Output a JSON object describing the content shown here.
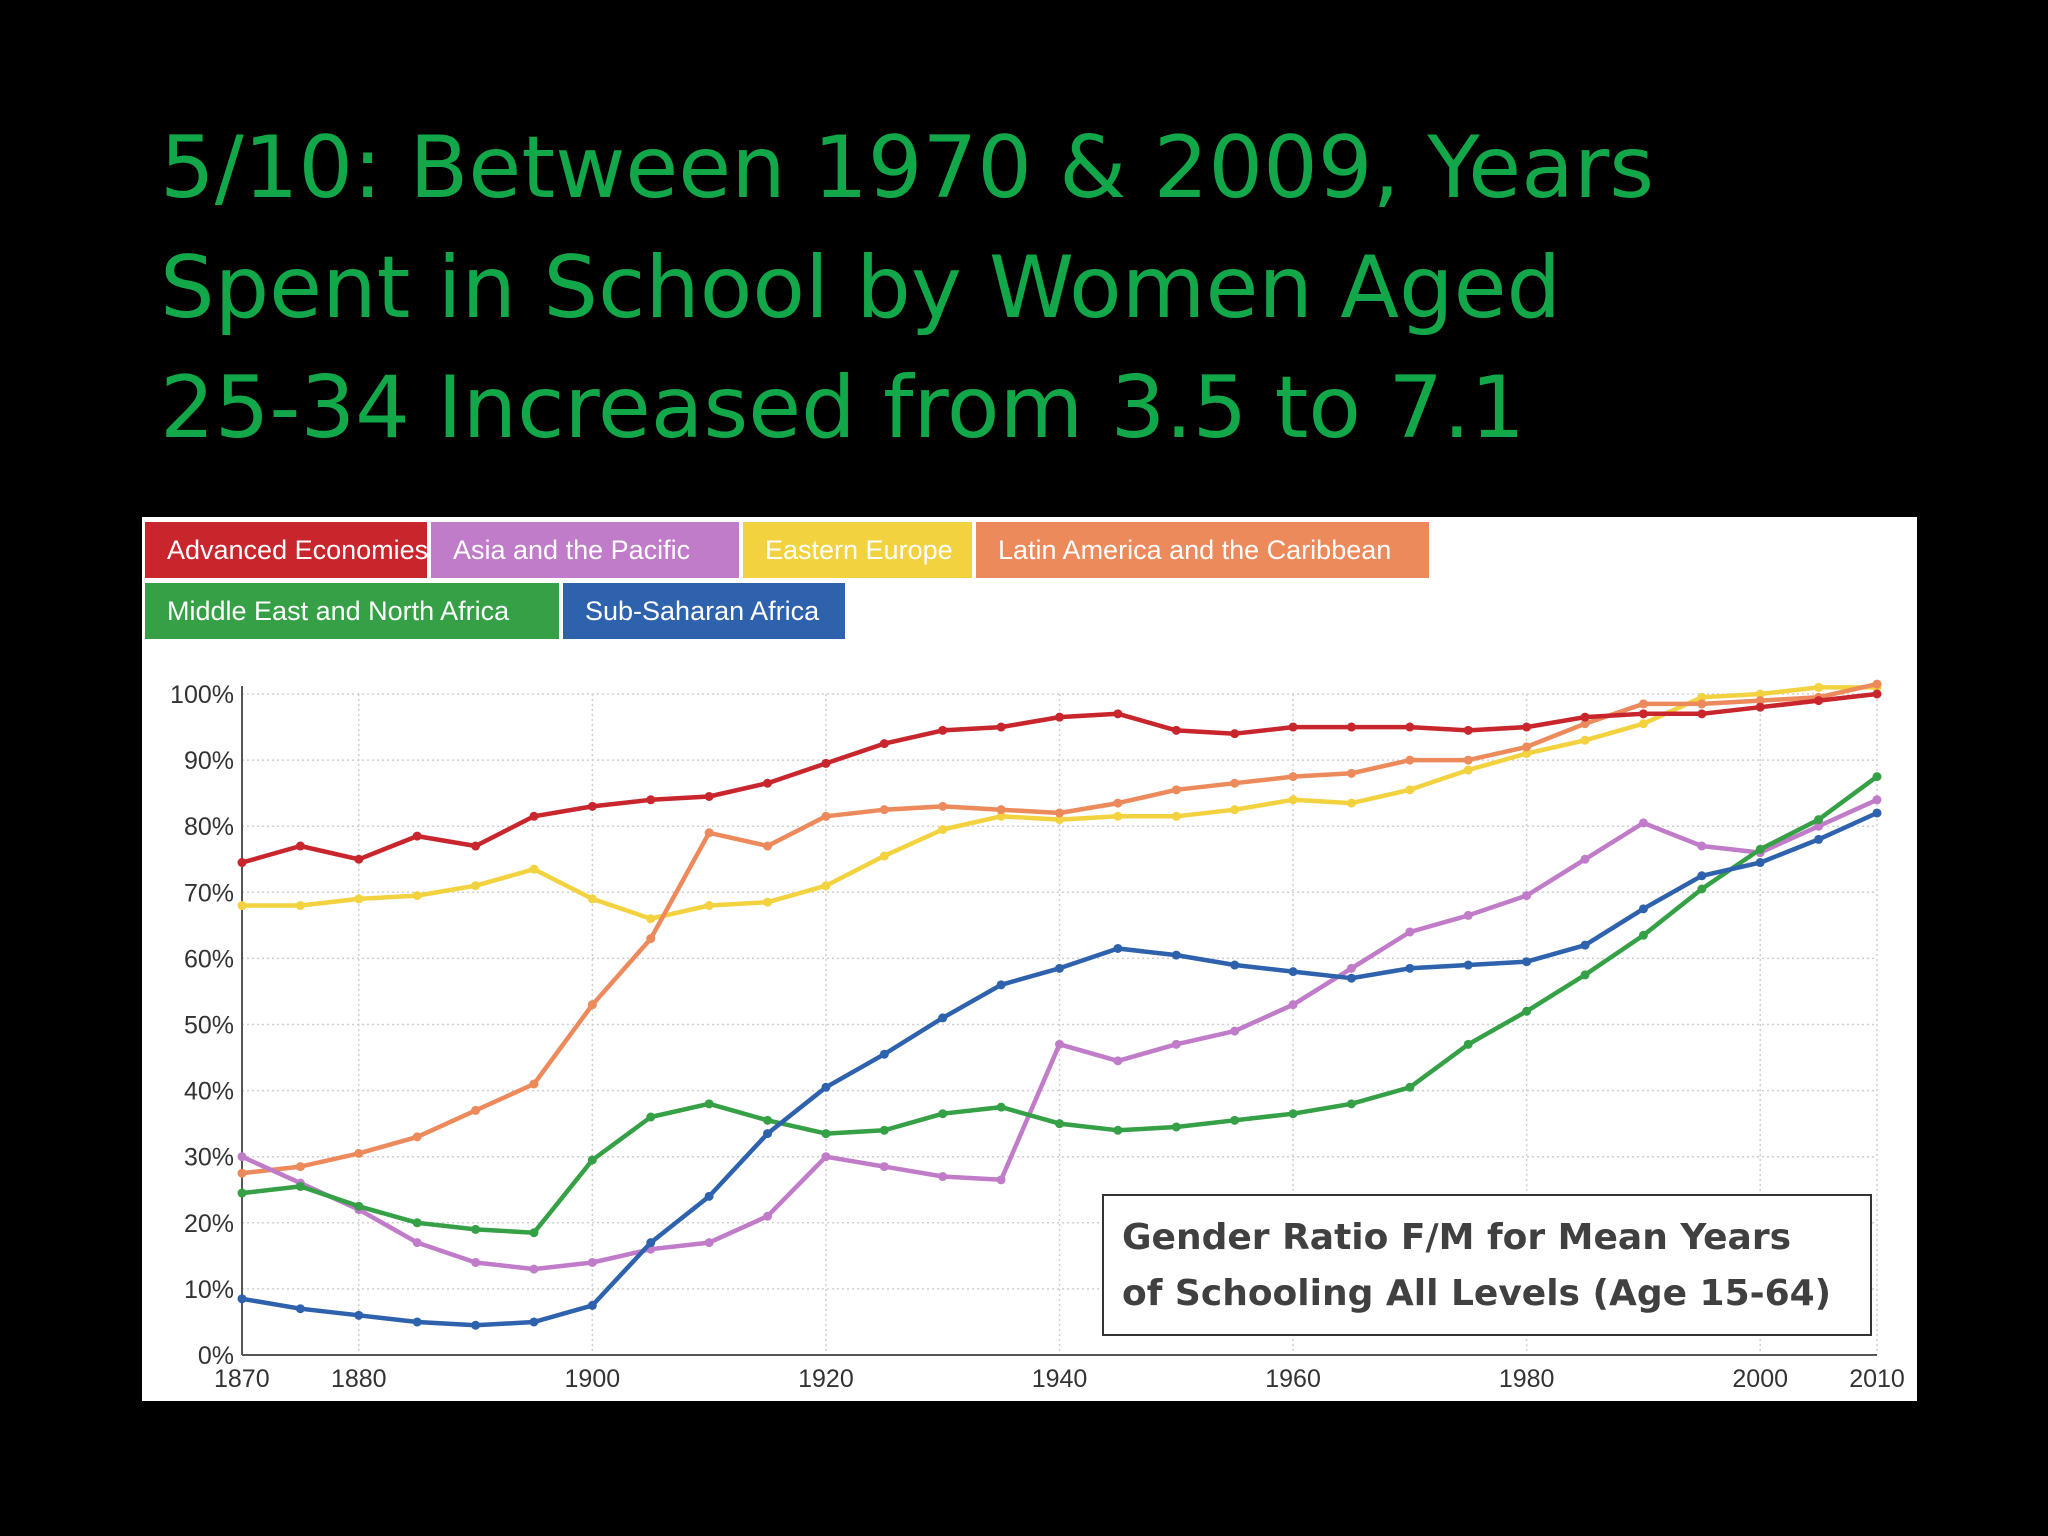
{
  "slide": {
    "title_lines": [
      "5/10: Between 1970 & 2009, Years",
      "Spent in School by Women Aged",
      "25-34 Increased from 3.5 to 7.1"
    ]
  },
  "chart_data": {
    "type": "line",
    "title": "",
    "note": {
      "lines": [
        "Gender Ratio F/M for Mean Years",
        "of Schooling All Levels (Age 15-64)"
      ]
    },
    "xlabel": "",
    "ylabel": "",
    "x": [
      1870,
      1875,
      1880,
      1885,
      1890,
      1895,
      1900,
      1905,
      1910,
      1915,
      1920,
      1925,
      1930,
      1935,
      1940,
      1945,
      1950,
      1955,
      1960,
      1965,
      1970,
      1975,
      1980,
      1985,
      1990,
      1995,
      2000,
      2005,
      2010
    ],
    "xlim": [
      1870,
      2010
    ],
    "ylim": [
      0,
      100
    ],
    "x_ticks": [
      {
        "value": 1870,
        "label": "1870"
      },
      {
        "value": 1880,
        "label": "1880"
      },
      {
        "value": 1900,
        "label": "1900"
      },
      {
        "value": 1920,
        "label": "1920"
      },
      {
        "value": 1940,
        "label": "1940"
      },
      {
        "value": 1960,
        "label": "1960"
      },
      {
        "value": 1980,
        "label": "1980"
      },
      {
        "value": 2000,
        "label": "2000"
      },
      {
        "value": 2010,
        "label": "2010"
      }
    ],
    "y_ticks": [
      {
        "value": 0,
        "label": "0%"
      },
      {
        "value": 10,
        "label": "10%"
      },
      {
        "value": 20,
        "label": "20%"
      },
      {
        "value": 30,
        "label": "30%"
      },
      {
        "value": 40,
        "label": "40%"
      },
      {
        "value": 50,
        "label": "50%"
      },
      {
        "value": 60,
        "label": "60%"
      },
      {
        "value": 70,
        "label": "70%"
      },
      {
        "value": 80,
        "label": "80%"
      },
      {
        "value": 90,
        "label": "90%"
      },
      {
        "value": 100,
        "label": "100%"
      }
    ],
    "grid": true,
    "legend_position": "top-left",
    "series": [
      {
        "name": "Advanced Economies",
        "color": "#c8262c",
        "values": [
          74.5,
          77,
          75,
          78.5,
          77,
          81.5,
          83,
          84,
          84.5,
          86.5,
          89.5,
          92.5,
          94.5,
          95,
          96.5,
          97,
          94.5,
          94,
          95,
          95,
          95,
          94.5,
          95,
          96.5,
          97,
          97,
          98,
          99,
          100
        ]
      },
      {
        "name": "Asia and the Pacific",
        "color": "#c07cc8",
        "values": [
          30,
          26,
          22,
          17,
          14,
          13,
          14,
          16,
          17,
          21,
          30,
          28.5,
          27,
          26.5,
          47,
          44.5,
          47,
          49,
          53,
          58.5,
          64,
          66.5,
          69.5,
          75,
          80.5,
          77,
          76,
          80,
          84
        ]
      },
      {
        "name": "Eastern Europe",
        "color": "#f3d23f",
        "values": [
          68,
          68,
          69,
          69.5,
          71,
          73.5,
          69,
          66,
          68,
          68.5,
          71,
          75.5,
          79.5,
          81.5,
          81,
          81.5,
          81.5,
          82.5,
          84,
          83.5,
          85.5,
          88.5,
          91,
          93,
          95.5,
          99.5,
          100,
          101,
          101
        ]
      },
      {
        "name": "Latin America and the Caribbean",
        "color": "#ed8a5c",
        "values": [
          27.5,
          28.5,
          30.5,
          33,
          37,
          41,
          53,
          63,
          79,
          77,
          81.5,
          82.5,
          83,
          82.5,
          82,
          83.5,
          85.5,
          86.5,
          87.5,
          88,
          90,
          90,
          92,
          95.5,
          98.5,
          98.5,
          99,
          99.5,
          101.5
        ]
      },
      {
        "name": "Middle East and North Africa",
        "color": "#35a046",
        "values": [
          24.5,
          25.5,
          22.5,
          20,
          19,
          18.5,
          29.5,
          36,
          38,
          35.5,
          33.5,
          34,
          36.5,
          37.5,
          35,
          34,
          34.5,
          35.5,
          36.5,
          38,
          40.5,
          47,
          52,
          57.5,
          63.5,
          70.5,
          76.5,
          81,
          87.5
        ]
      },
      {
        "name": "Sub-Saharan Africa",
        "color": "#2e62ad",
        "values": [
          8.5,
          7,
          6,
          5,
          4.5,
          5,
          7.5,
          17,
          24,
          33.5,
          40.5,
          45.5,
          51,
          56,
          58.5,
          61.5,
          60.5,
          59,
          58,
          57,
          58.5,
          59,
          59.5,
          62,
          67.5,
          72.5,
          74.5,
          78,
          82
        ]
      }
    ]
  },
  "legend": {
    "rows": [
      [
        "Advanced Economies",
        "Asia and the Pacific",
        "Eastern Europe",
        "Latin America and the Caribbean"
      ],
      [
        "Middle East and North Africa",
        "Sub-Saharan Africa"
      ]
    ]
  }
}
